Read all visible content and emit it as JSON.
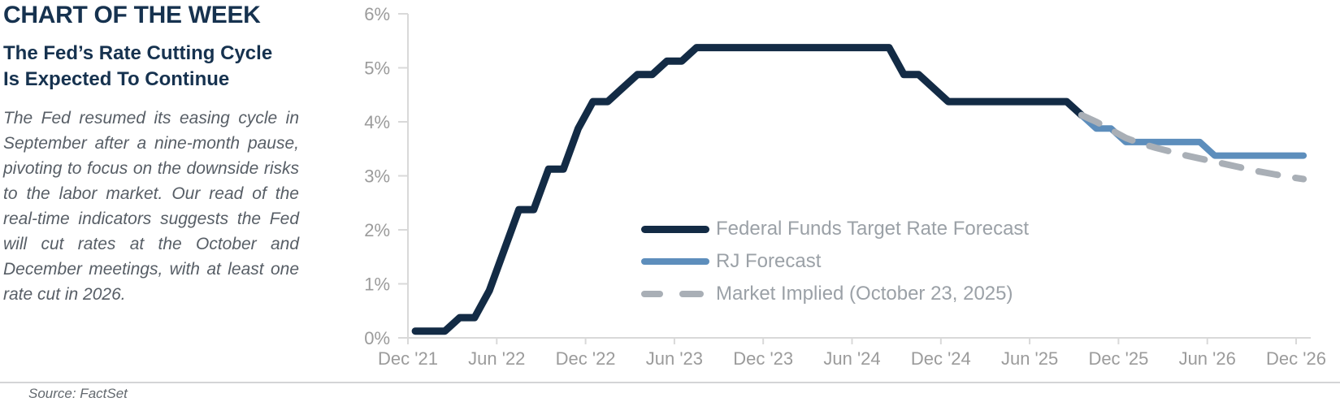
{
  "panel": {
    "kicker": "CHART OF THE WEEK",
    "headline": "The Fed’s Rate Cutting Cycle Is Expected To Continue",
    "body": "The Fed resumed its easing cycle in September after a nine-month pause, pivoting to focus on the downside risks to the labor market. Our read of the real-time indicators suggests the Fed will cut rates at the October and December meetings, with at least one rate cut in 2026.",
    "source": "Source: FactSet"
  },
  "colors": {
    "navy": "#132b45",
    "blue": "#5d8ebc",
    "gray_dash": "#a9afb6",
    "axis": "#d9d9d9",
    "tick_text": "#9b9b9b",
    "legend_text": "#9ba1a7"
  },
  "chart_data": {
    "type": "line",
    "title": "",
    "xlabel": "",
    "ylabel": "",
    "x_unit": "months since Dec 2021, monthly samples",
    "ylim": [
      0,
      6
    ],
    "grid": "off",
    "legend_position": "inside center-right",
    "y_tick_labels": [
      "0%",
      "1%",
      "2%",
      "3%",
      "4%",
      "5%",
      "6%"
    ],
    "x_tick_labels": [
      "Dec '21",
      "Jun '22",
      "Dec '22",
      "Jun '23",
      "Dec '23",
      "Jun '24",
      "Dec '24",
      "Jun '25",
      "Dec '25",
      "Jun '26",
      "Dec '26"
    ],
    "x_tick_months": [
      0,
      6,
      12,
      18,
      24,
      30,
      36,
      42,
      48,
      54,
      60
    ],
    "series": [
      {
        "name": "Federal Funds Target Rate Forecast",
        "style": "solid",
        "line_width": 9,
        "color_key": "navy",
        "start_month": 0,
        "values": [
          0.125,
          0.125,
          0.125,
          0.375,
          0.375,
          0.875,
          1.625,
          2.375,
          2.375,
          3.125,
          3.125,
          3.875,
          4.375,
          4.375,
          4.625,
          4.875,
          4.875,
          5.125,
          5.125,
          5.375,
          5.375,
          5.375,
          5.375,
          5.375,
          5.375,
          5.375,
          5.375,
          5.375,
          5.375,
          5.375,
          5.375,
          5.375,
          5.375,
          4.875,
          4.875,
          4.625,
          4.375,
          4.375,
          4.375,
          4.375,
          4.375,
          4.375,
          4.375,
          4.375,
          4.375,
          4.125
        ]
      },
      {
        "name": "RJ Forecast",
        "style": "solid",
        "line_width": 8,
        "color_key": "blue",
        "start_month": 45,
        "values": [
          4.125,
          3.875,
          3.875,
          3.625,
          3.625,
          3.625,
          3.625,
          3.625,
          3.625,
          3.375,
          3.375,
          3.375,
          3.375,
          3.375,
          3.375,
          3.375
        ]
      },
      {
        "name": "Market Implied (October 23, 2025)",
        "style": "dashed",
        "line_width": 8,
        "color_key": "gray_dash",
        "start_month": 45,
        "values": [
          4.125,
          4.0,
          3.85,
          3.7,
          3.6,
          3.52,
          3.45,
          3.38,
          3.32,
          3.26,
          3.2,
          3.14,
          3.08,
          3.03,
          2.98,
          2.94
        ]
      }
    ]
  }
}
